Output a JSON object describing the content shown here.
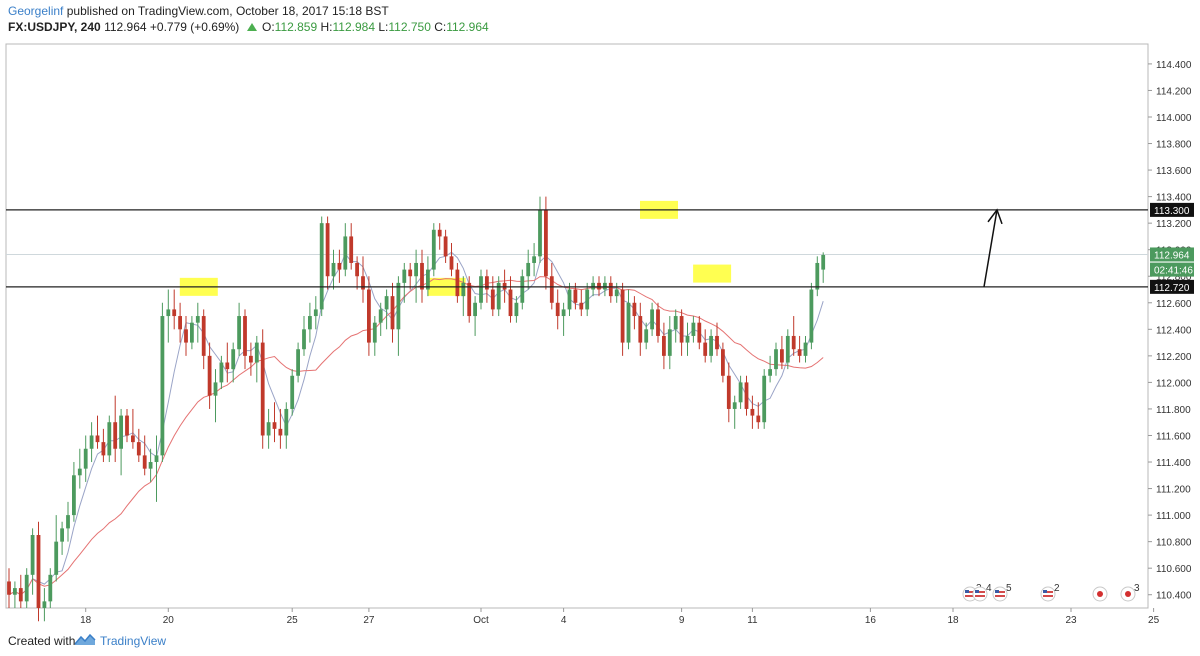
{
  "header": {
    "user": "Georgelinf",
    "published": "published on TradingView.com, October 18, 2017 15:18 BST",
    "symbol": "FX:USDJPY, 240",
    "last": "112.964",
    "change": "+0.779 (+0.69%)",
    "o_label": "O:",
    "o_value": "112.859",
    "h_label": "H:",
    "h_value": "112.984",
    "l_label": "L:",
    "l_value": "112.750",
    "c_label": "C:",
    "c_value": "112.964"
  },
  "footer": {
    "created_with": "Created with",
    "brand": "TradingView"
  },
  "colors": {
    "up": "#4c9a5e",
    "down": "#c0392b",
    "ma_fast": "#9aa4c7",
    "ma_slow": "#e57373",
    "highlight": "#ffff33"
  },
  "price_tags": [
    {
      "value": 113.3,
      "text": "113.300",
      "style": "dark"
    },
    {
      "value": 112.964,
      "text": "112.964",
      "style": "green"
    },
    {
      "value": 112.85,
      "text": "02:41:46",
      "style": "green"
    },
    {
      "value": 112.72,
      "text": "112.720",
      "style": "dark"
    }
  ],
  "event_badges": [
    {
      "text": "2",
      "icon": "us-flag-icon"
    },
    {
      "text": "4",
      "icon": "us-flag-icon"
    },
    {
      "text": "5",
      "icon": "us-flag-icon"
    },
    {
      "text": "2",
      "icon": "us-flag-icon"
    },
    {
      "text": "",
      "icon": "jp-flag-icon"
    },
    {
      "text": "3",
      "icon": "jp-flag-icon"
    }
  ],
  "chart_data": {
    "type": "candlestick",
    "symbol": "FX:USDJPY",
    "interval": "240",
    "ylim": [
      110.3,
      114.55
    ],
    "y_ticks": [
      110.4,
      110.6,
      110.8,
      111.0,
      111.2,
      111.4,
      111.6,
      111.8,
      112.0,
      112.2,
      112.4,
      112.6,
      112.8,
      113.0,
      113.2,
      113.4,
      113.6,
      113.8,
      114.0,
      114.2,
      114.4
    ],
    "y_tick_labels": [
      "110.400",
      "110.600",
      "110.800",
      "111.000",
      "111.200",
      "111.400",
      "111.600",
      "111.800",
      "112.000",
      "112.200",
      "112.400",
      "112.600",
      "112.800",
      "113.000",
      "113.200",
      "113.400",
      "113.600",
      "113.800",
      "114.000",
      "114.200",
      "114.400"
    ],
    "x_ticks": [
      {
        "label": "18",
        "index": 13
      },
      {
        "label": "20",
        "index": 27
      },
      {
        "label": "25",
        "index": 48
      },
      {
        "label": "27",
        "index": 61
      },
      {
        "label": "Oct",
        "index": 80
      },
      {
        "label": "4",
        "index": 94
      },
      {
        "label": "9",
        "index": 114
      },
      {
        "label": "11",
        "index": 126
      },
      {
        "label": "16",
        "index": 146
      },
      {
        "label": "18",
        "index": 160
      },
      {
        "label": "23",
        "index": 180
      },
      {
        "label": "25",
        "index": 194
      }
    ],
    "horizontal_levels": [
      113.3,
      112.72
    ],
    "candles": [
      {
        "o": 110.5,
        "h": 110.6,
        "l": 110.3,
        "c": 110.4
      },
      {
        "o": 110.4,
        "h": 110.5,
        "l": 110.3,
        "c": 110.45
      },
      {
        "o": 110.45,
        "h": 110.55,
        "l": 110.3,
        "c": 110.35
      },
      {
        "o": 110.35,
        "h": 110.6,
        "l": 110.3,
        "c": 110.55
      },
      {
        "o": 110.55,
        "h": 110.9,
        "l": 110.4,
        "c": 110.85
      },
      {
        "o": 110.85,
        "h": 110.95,
        "l": 110.2,
        "c": 110.3
      },
      {
        "o": 110.3,
        "h": 110.45,
        "l": 110.2,
        "c": 110.35
      },
      {
        "o": 110.35,
        "h": 110.6,
        "l": 110.3,
        "c": 110.55
      },
      {
        "o": 110.55,
        "h": 111.0,
        "l": 110.5,
        "c": 110.8
      },
      {
        "o": 110.8,
        "h": 110.95,
        "l": 110.7,
        "c": 110.9
      },
      {
        "o": 110.9,
        "h": 111.1,
        "l": 110.8,
        "c": 111.0
      },
      {
        "o": 111.0,
        "h": 111.4,
        "l": 110.95,
        "c": 111.3
      },
      {
        "o": 111.3,
        "h": 111.5,
        "l": 111.2,
        "c": 111.35
      },
      {
        "o": 111.35,
        "h": 111.6,
        "l": 111.25,
        "c": 111.5
      },
      {
        "o": 111.5,
        "h": 111.7,
        "l": 111.4,
        "c": 111.6
      },
      {
        "o": 111.6,
        "h": 111.75,
        "l": 111.5,
        "c": 111.55
      },
      {
        "o": 111.55,
        "h": 111.65,
        "l": 111.4,
        "c": 111.45
      },
      {
        "o": 111.45,
        "h": 111.75,
        "l": 111.4,
        "c": 111.7
      },
      {
        "o": 111.7,
        "h": 111.9,
        "l": 111.4,
        "c": 111.5
      },
      {
        "o": 111.5,
        "h": 111.8,
        "l": 111.3,
        "c": 111.75
      },
      {
        "o": 111.75,
        "h": 111.8,
        "l": 111.55,
        "c": 111.6
      },
      {
        "o": 111.6,
        "h": 111.8,
        "l": 111.5,
        "c": 111.55
      },
      {
        "o": 111.55,
        "h": 111.65,
        "l": 111.4,
        "c": 111.45
      },
      {
        "o": 111.45,
        "h": 111.6,
        "l": 111.3,
        "c": 111.35
      },
      {
        "o": 111.35,
        "h": 111.5,
        "l": 111.25,
        "c": 111.4
      },
      {
        "o": 111.4,
        "h": 111.6,
        "l": 111.1,
        "c": 111.45
      },
      {
        "o": 111.45,
        "h": 112.6,
        "l": 111.4,
        "c": 112.5
      },
      {
        "o": 112.5,
        "h": 112.7,
        "l": 112.3,
        "c": 112.55
      },
      {
        "o": 112.55,
        "h": 112.7,
        "l": 112.4,
        "c": 112.5
      },
      {
        "o": 112.5,
        "h": 112.6,
        "l": 112.3,
        "c": 112.4
      },
      {
        "o": 112.4,
        "h": 112.5,
        "l": 112.2,
        "c": 112.3
      },
      {
        "o": 112.3,
        "h": 112.5,
        "l": 112.25,
        "c": 112.45
      },
      {
        "o": 112.45,
        "h": 112.6,
        "l": 112.3,
        "c": 112.5
      },
      {
        "o": 112.5,
        "h": 112.55,
        "l": 112.1,
        "c": 112.2
      },
      {
        "o": 112.2,
        "h": 112.3,
        "l": 111.8,
        "c": 111.9
      },
      {
        "o": 111.9,
        "h": 112.1,
        "l": 111.7,
        "c": 112.0
      },
      {
        "o": 112.0,
        "h": 112.2,
        "l": 111.95,
        "c": 112.15
      },
      {
        "o": 112.15,
        "h": 112.3,
        "l": 112.0,
        "c": 112.1
      },
      {
        "o": 112.1,
        "h": 112.3,
        "l": 112.0,
        "c": 112.25
      },
      {
        "o": 112.25,
        "h": 112.6,
        "l": 112.2,
        "c": 112.5
      },
      {
        "o": 112.5,
        "h": 112.55,
        "l": 112.1,
        "c": 112.2
      },
      {
        "o": 112.2,
        "h": 112.3,
        "l": 112.05,
        "c": 112.15
      },
      {
        "o": 112.15,
        "h": 112.35,
        "l": 112.0,
        "c": 112.3
      },
      {
        "o": 112.3,
        "h": 112.4,
        "l": 111.5,
        "c": 111.6
      },
      {
        "o": 111.6,
        "h": 111.8,
        "l": 111.5,
        "c": 111.7
      },
      {
        "o": 111.7,
        "h": 111.85,
        "l": 111.55,
        "c": 111.65
      },
      {
        "o": 111.65,
        "h": 111.8,
        "l": 111.5,
        "c": 111.6
      },
      {
        "o": 111.6,
        "h": 111.85,
        "l": 111.5,
        "c": 111.8
      },
      {
        "o": 111.8,
        "h": 112.1,
        "l": 111.75,
        "c": 112.05
      },
      {
        "o": 112.05,
        "h": 112.3,
        "l": 112.0,
        "c": 112.25
      },
      {
        "o": 112.25,
        "h": 112.5,
        "l": 112.2,
        "c": 112.4
      },
      {
        "o": 112.4,
        "h": 112.6,
        "l": 112.3,
        "c": 112.5
      },
      {
        "o": 112.5,
        "h": 112.65,
        "l": 112.4,
        "c": 112.55
      },
      {
        "o": 112.55,
        "h": 113.25,
        "l": 112.5,
        "c": 113.2
      },
      {
        "o": 113.2,
        "h": 113.25,
        "l": 112.7,
        "c": 112.8
      },
      {
        "o": 112.8,
        "h": 113.0,
        "l": 112.7,
        "c": 112.9
      },
      {
        "o": 112.9,
        "h": 113.0,
        "l": 112.75,
        "c": 112.85
      },
      {
        "o": 112.85,
        "h": 113.2,
        "l": 112.8,
        "c": 113.1
      },
      {
        "o": 113.1,
        "h": 113.2,
        "l": 112.85,
        "c": 112.9
      },
      {
        "o": 112.9,
        "h": 112.95,
        "l": 112.7,
        "c": 112.8
      },
      {
        "o": 112.8,
        "h": 112.95,
        "l": 112.6,
        "c": 112.7
      },
      {
        "o": 112.7,
        "h": 112.8,
        "l": 112.2,
        "c": 112.3
      },
      {
        "o": 112.3,
        "h": 112.5,
        "l": 112.2,
        "c": 112.45
      },
      {
        "o": 112.45,
        "h": 112.6,
        "l": 112.35,
        "c": 112.55
      },
      {
        "o": 112.55,
        "h": 112.7,
        "l": 112.4,
        "c": 112.65
      },
      {
        "o": 112.65,
        "h": 112.75,
        "l": 112.3,
        "c": 112.4
      },
      {
        "o": 112.4,
        "h": 112.8,
        "l": 112.2,
        "c": 112.75
      },
      {
        "o": 112.75,
        "h": 112.9,
        "l": 112.6,
        "c": 112.85
      },
      {
        "o": 112.85,
        "h": 112.9,
        "l": 112.7,
        "c": 112.8
      },
      {
        "o": 112.8,
        "h": 113.0,
        "l": 112.6,
        "c": 112.9
      },
      {
        "o": 112.9,
        "h": 113.0,
        "l": 112.6,
        "c": 112.7
      },
      {
        "o": 112.7,
        "h": 112.95,
        "l": 112.65,
        "c": 112.85
      },
      {
        "o": 112.85,
        "h": 113.2,
        "l": 112.8,
        "c": 113.15
      },
      {
        "o": 113.15,
        "h": 113.2,
        "l": 113.0,
        "c": 113.1
      },
      {
        "o": 113.1,
        "h": 113.15,
        "l": 112.9,
        "c": 112.95
      },
      {
        "o": 112.95,
        "h": 113.05,
        "l": 112.8,
        "c": 112.85
      },
      {
        "o": 112.85,
        "h": 112.9,
        "l": 112.6,
        "c": 112.65
      },
      {
        "o": 112.65,
        "h": 112.8,
        "l": 112.5,
        "c": 112.75
      },
      {
        "o": 112.75,
        "h": 112.8,
        "l": 112.45,
        "c": 112.5
      },
      {
        "o": 112.5,
        "h": 112.65,
        "l": 112.35,
        "c": 112.6
      },
      {
        "o": 112.6,
        "h": 112.85,
        "l": 112.55,
        "c": 112.8
      },
      {
        "o": 112.8,
        "h": 112.85,
        "l": 112.6,
        "c": 112.7
      },
      {
        "o": 112.7,
        "h": 112.8,
        "l": 112.5,
        "c": 112.55
      },
      {
        "o": 112.55,
        "h": 112.8,
        "l": 112.5,
        "c": 112.75
      },
      {
        "o": 112.75,
        "h": 112.85,
        "l": 112.6,
        "c": 112.7
      },
      {
        "o": 112.7,
        "h": 112.8,
        "l": 112.45,
        "c": 112.5
      },
      {
        "o": 112.5,
        "h": 112.65,
        "l": 112.45,
        "c": 112.6
      },
      {
        "o": 112.6,
        "h": 112.85,
        "l": 112.55,
        "c": 112.8
      },
      {
        "o": 112.8,
        "h": 113.0,
        "l": 112.7,
        "c": 112.9
      },
      {
        "o": 112.9,
        "h": 113.05,
        "l": 112.8,
        "c": 112.95
      },
      {
        "o": 112.95,
        "h": 113.4,
        "l": 112.9,
        "c": 113.3
      },
      {
        "o": 113.3,
        "h": 113.4,
        "l": 112.7,
        "c": 112.8
      },
      {
        "o": 112.8,
        "h": 112.9,
        "l": 112.55,
        "c": 112.6
      },
      {
        "o": 112.6,
        "h": 112.7,
        "l": 112.4,
        "c": 112.5
      },
      {
        "o": 112.5,
        "h": 112.6,
        "l": 112.35,
        "c": 112.55
      },
      {
        "o": 112.55,
        "h": 112.75,
        "l": 112.5,
        "c": 112.7
      },
      {
        "o": 112.7,
        "h": 112.75,
        "l": 112.55,
        "c": 112.6
      },
      {
        "o": 112.6,
        "h": 112.7,
        "l": 112.5,
        "c": 112.55
      },
      {
        "o": 112.55,
        "h": 112.75,
        "l": 112.5,
        "c": 112.7
      },
      {
        "o": 112.7,
        "h": 112.8,
        "l": 112.65,
        "c": 112.75
      },
      {
        "o": 112.75,
        "h": 112.8,
        "l": 112.65,
        "c": 112.7
      },
      {
        "o": 112.7,
        "h": 112.8,
        "l": 112.65,
        "c": 112.75
      },
      {
        "o": 112.75,
        "h": 112.8,
        "l": 112.6,
        "c": 112.65
      },
      {
        "o": 112.65,
        "h": 112.75,
        "l": 112.6,
        "c": 112.7
      },
      {
        "o": 112.7,
        "h": 112.75,
        "l": 112.2,
        "c": 112.3
      },
      {
        "o": 112.3,
        "h": 112.7,
        "l": 112.25,
        "c": 112.6
      },
      {
        "o": 112.6,
        "h": 112.65,
        "l": 112.4,
        "c": 112.5
      },
      {
        "o": 112.5,
        "h": 112.6,
        "l": 112.2,
        "c": 112.3
      },
      {
        "o": 112.3,
        "h": 112.45,
        "l": 112.25,
        "c": 112.4
      },
      {
        "o": 112.4,
        "h": 112.6,
        "l": 112.35,
        "c": 112.55
      },
      {
        "o": 112.55,
        "h": 112.6,
        "l": 112.3,
        "c": 112.35
      },
      {
        "o": 112.35,
        "h": 112.45,
        "l": 112.1,
        "c": 112.2
      },
      {
        "o": 112.2,
        "h": 112.5,
        "l": 112.1,
        "c": 112.4
      },
      {
        "o": 112.4,
        "h": 112.55,
        "l": 112.3,
        "c": 112.5
      },
      {
        "o": 112.5,
        "h": 112.55,
        "l": 112.2,
        "c": 112.3
      },
      {
        "o": 112.3,
        "h": 112.45,
        "l": 112.2,
        "c": 112.35
      },
      {
        "o": 112.35,
        "h": 112.5,
        "l": 112.3,
        "c": 112.45
      },
      {
        "o": 112.45,
        "h": 112.5,
        "l": 112.25,
        "c": 112.3
      },
      {
        "o": 112.3,
        "h": 112.4,
        "l": 112.15,
        "c": 112.2
      },
      {
        "o": 112.2,
        "h": 112.4,
        "l": 112.15,
        "c": 112.35
      },
      {
        "o": 112.35,
        "h": 112.45,
        "l": 112.2,
        "c": 112.25
      },
      {
        "o": 112.25,
        "h": 112.3,
        "l": 112.0,
        "c": 112.05
      },
      {
        "o": 112.05,
        "h": 112.15,
        "l": 111.7,
        "c": 111.8
      },
      {
        "o": 111.8,
        "h": 111.9,
        "l": 111.65,
        "c": 111.85
      },
      {
        "o": 111.85,
        "h": 112.05,
        "l": 111.8,
        "c": 112.0
      },
      {
        "o": 112.0,
        "h": 112.05,
        "l": 111.75,
        "c": 111.8
      },
      {
        "o": 111.8,
        "h": 111.9,
        "l": 111.65,
        "c": 111.75
      },
      {
        "o": 111.75,
        "h": 111.85,
        "l": 111.65,
        "c": 111.7
      },
      {
        "o": 111.7,
        "h": 112.1,
        "l": 111.65,
        "c": 112.05
      },
      {
        "o": 112.05,
        "h": 112.2,
        "l": 112.0,
        "c": 112.1
      },
      {
        "o": 112.1,
        "h": 112.3,
        "l": 112.05,
        "c": 112.25
      },
      {
        "o": 112.25,
        "h": 112.35,
        "l": 112.1,
        "c": 112.15
      },
      {
        "o": 112.15,
        "h": 112.4,
        "l": 112.1,
        "c": 112.35
      },
      {
        "o": 112.35,
        "h": 112.5,
        "l": 112.2,
        "c": 112.25
      },
      {
        "o": 112.25,
        "h": 112.35,
        "l": 112.15,
        "c": 112.2
      },
      {
        "o": 112.2,
        "h": 112.35,
        "l": 112.15,
        "c": 112.3
      },
      {
        "o": 112.3,
        "h": 112.75,
        "l": 112.25,
        "c": 112.7
      },
      {
        "o": 112.7,
        "h": 112.95,
        "l": 112.65,
        "c": 112.9
      },
      {
        "o": 112.85,
        "h": 112.98,
        "l": 112.75,
        "c": 112.96
      }
    ]
  }
}
